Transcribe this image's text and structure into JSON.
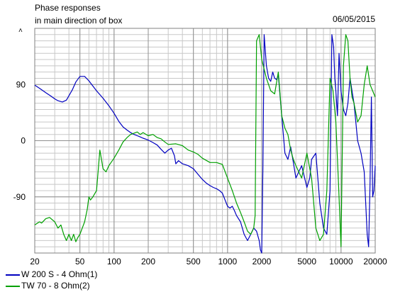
{
  "header": {
    "title_line1": "Phase responses",
    "title_line2": "in main direction of box",
    "date": "06/05/2015"
  },
  "chart_data": {
    "type": "line",
    "x_scale": "log",
    "xlim": [
      20,
      20000
    ],
    "ylim": [
      -180,
      180
    ],
    "grid": true,
    "x_ticks": [
      20,
      50,
      100,
      200,
      500,
      1000,
      2000,
      5000,
      10000,
      20000
    ],
    "x_tick_labels": [
      "20",
      "50",
      "100",
      "200",
      "500",
      "1000",
      "2000",
      "5000",
      "10000",
      "20000"
    ],
    "y_ticks": [
      90,
      0,
      -90
    ],
    "y_tick_labels": [
      "90",
      "0",
      "-90"
    ],
    "legend_position": "bottom-left",
    "series": [
      {
        "name": "W 200 S - 4 Ohm(1)",
        "color": "#0000c0",
        "x": [
          20,
          22,
          25,
          28,
          30,
          32,
          35,
          38,
          40,
          43,
          46,
          50,
          55,
          60,
          70,
          80,
          90,
          100,
          110,
          120,
          130,
          140,
          150,
          160,
          170,
          180,
          200,
          220,
          240,
          260,
          280,
          300,
          320,
          340,
          350,
          370,
          400,
          450,
          500,
          550,
          600,
          650,
          700,
          750,
          800,
          850,
          900,
          950,
          1000,
          1050,
          1100,
          1150,
          1200,
          1300,
          1400,
          1500,
          1600,
          1700,
          1800,
          1900,
          1950,
          2000,
          2050,
          2100,
          2200,
          2300,
          2400,
          2500,
          2600,
          2700,
          2800,
          3000,
          3200,
          3400,
          3600,
          3800,
          4000,
          4500,
          5000,
          5300,
          5500,
          6000,
          6500,
          7000,
          7500,
          8000,
          8300,
          8600,
          8800,
          9000,
          9300,
          9600,
          10000,
          10500,
          11000,
          11500,
          12000,
          12500,
          13000,
          14000,
          15000,
          16000,
          17000,
          17500,
          18000,
          18500,
          19000,
          19500,
          20000
        ],
        "y": [
          89,
          84,
          77,
          71,
          67,
          64,
          62,
          65,
          72,
          82,
          94,
          103,
          103,
          96,
          80,
          68,
          56,
          44,
          31,
          22,
          17,
          13,
          10,
          8,
          6,
          4,
          1,
          -3,
          -7,
          -14,
          -20,
          -15,
          -12,
          -24,
          -37,
          -32,
          -37,
          -40,
          -45,
          -54,
          -62,
          -68,
          -72,
          -75,
          -77,
          -80,
          -84,
          -95,
          -105,
          -108,
          -105,
          -112,
          -120,
          -130,
          -150,
          -160,
          -150,
          -140,
          -145,
          -160,
          -175,
          -180,
          -40,
          170,
          120,
          100,
          95,
          110,
          100,
          98,
          105,
          40,
          -20,
          -30,
          -10,
          -35,
          -60,
          -40,
          -75,
          -60,
          -30,
          -20,
          -100,
          -140,
          -150,
          -80,
          170,
          150,
          100,
          80,
          40,
          140,
          80,
          50,
          40,
          60,
          100,
          80,
          60,
          0,
          -20,
          -50,
          -150,
          -170,
          -70,
          70,
          -90,
          -80,
          -40
        ]
      },
      {
        "name": "TW 70 - 8 Ohm(2)",
        "color": "#00a000",
        "x": [
          20,
          22,
          23,
          25,
          27,
          30,
          32,
          34,
          36,
          38,
          40,
          42,
          44,
          46,
          48,
          50,
          55,
          58,
          60,
          62,
          65,
          70,
          73,
          75,
          80,
          85,
          90,
          100,
          110,
          120,
          130,
          140,
          150,
          160,
          170,
          180,
          200,
          220,
          240,
          260,
          280,
          300,
          350,
          400,
          450,
          500,
          550,
          600,
          700,
          800,
          900,
          1000,
          1100,
          1200,
          1300,
          1400,
          1500,
          1600,
          1700,
          1750,
          1800,
          1900,
          2000,
          2200,
          2400,
          2600,
          2800,
          3000,
          3200,
          3400,
          3600,
          3800,
          4000,
          4500,
          5000,
          5500,
          6000,
          6500,
          7000,
          7500,
          8000,
          8500,
          9000,
          9500,
          10000,
          10500,
          11000,
          11500,
          12000,
          12500,
          13000,
          14000,
          15000,
          16000,
          17000,
          18000,
          19000,
          20000
        ],
        "y": [
          -135,
          -130,
          -132,
          -125,
          -123,
          -130,
          -140,
          -135,
          -150,
          -160,
          -150,
          -160,
          -150,
          -162,
          -155,
          -150,
          -130,
          -110,
          -90,
          -95,
          -90,
          -80,
          -40,
          -15,
          -45,
          -50,
          -40,
          -28,
          -15,
          -2,
          5,
          10,
          12,
          14,
          10,
          13,
          8,
          10,
          5,
          3,
          -2,
          -6,
          -5,
          -8,
          -15,
          -18,
          -22,
          -28,
          -35,
          -35,
          -38,
          -60,
          -80,
          -100,
          -115,
          -130,
          -145,
          -150,
          -140,
          -120,
          160,
          170,
          130,
          100,
          80,
          75,
          110,
          40,
          20,
          10,
          -15,
          -30,
          -40,
          -60,
          -20,
          -60,
          -140,
          -160,
          -150,
          -80,
          100,
          80,
          30,
          -70,
          -170,
          120,
          170,
          160,
          100,
          70,
          60,
          30,
          40,
          90,
          120,
          90,
          80,
          70
        ]
      }
    ]
  }
}
